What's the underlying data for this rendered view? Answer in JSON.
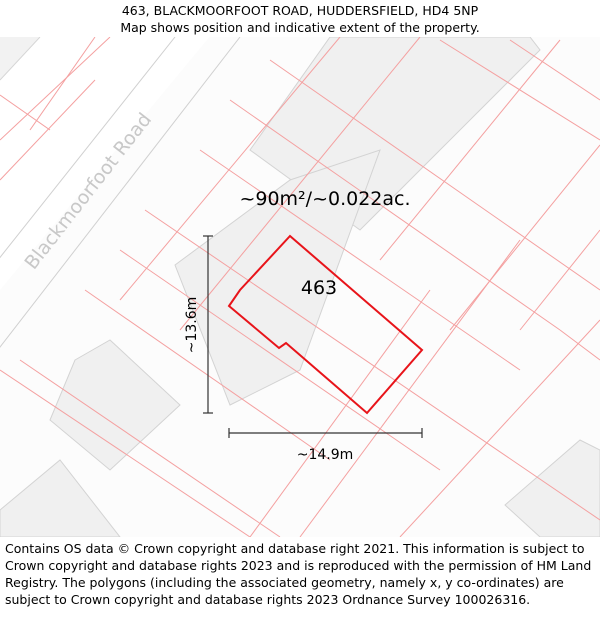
{
  "header": {
    "address": "463, BLACKMOORFOOT ROAD, HUDDERSFIELD, HD4 5NP",
    "subtitle": "Map shows position and indicative extent of the property."
  },
  "map": {
    "road_name": "Blackmoorfoot Road",
    "area_label": "~90m²/~0.022ac.",
    "plot_number": "463",
    "height_label": "~13.6m",
    "width_label": "~14.9m",
    "colors": {
      "boundary": "#e8141a",
      "parcel_line": "#f4a0a0",
      "building_fill": "#f0f0f0",
      "building_stroke": "#d3d3d3",
      "road_fill": "#fafafa",
      "road_edge": "#cfcfcf",
      "road_label": "#c8c8c8",
      "dimension": "#333333"
    }
  },
  "footer": {
    "copyright": "Contains OS data © Crown copyright and database right 2021. This information is subject to Crown copyright and database rights 2023 and is reproduced with the permission of HM Land Registry. The polygons (including the associated geometry, namely x, y co-ordinates) are subject to Crown copyright and database rights 2023 Ordnance Survey 100026316."
  }
}
